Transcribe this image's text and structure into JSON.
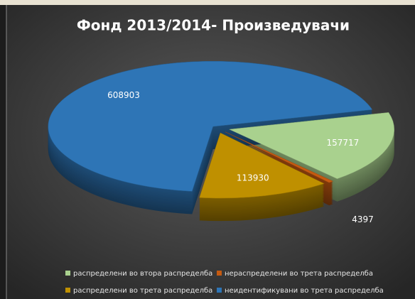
{
  "chart_data": {
    "type": "pie",
    "title": "Фонд 2013/2014- Произведувачи",
    "categories": [
      "распределени во втора распределба",
      "нераспределени во трета распределба",
      "распределени во трета распределба",
      "неидентификувани во трета распределба"
    ],
    "values": [
      157717,
      4397,
      113930,
      608903
    ],
    "colors": [
      "#a9d18e",
      "#c55a11",
      "#bf9000",
      "#2e75b6"
    ],
    "legend": "bottom"
  }
}
